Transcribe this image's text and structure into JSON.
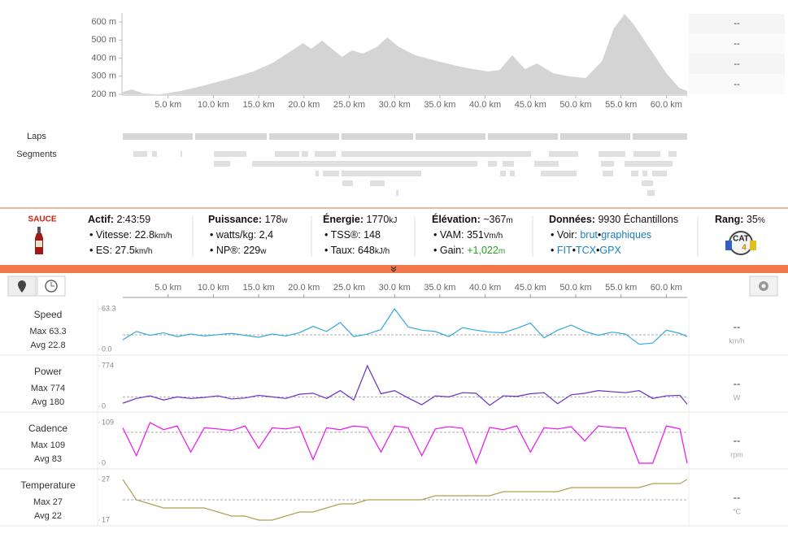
{
  "chart_data": [
    {
      "type": "area",
      "color": "#d4d4d4",
      "x": [
        0,
        1.0,
        2.3,
        4.1,
        6.4,
        9.0,
        11.7,
        14.4,
        16.6,
        18.4,
        19.9,
        20.8,
        22.0,
        23.3,
        24.2,
        25.3,
        26.5,
        28.0,
        29.2,
        30.5,
        32.3,
        35.0,
        37.7,
        40.3,
        41.6,
        43.0,
        44.4,
        45.7,
        47.5,
        49.3,
        51.1,
        52.9,
        54.2,
        55.4,
        56.4,
        58.2,
        60.0,
        61.4,
        62.3
      ],
      "values": [
        213,
        227,
        204,
        200,
        218,
        249,
        285,
        326,
        375,
        434,
        483,
        452,
        497,
        443,
        407,
        443,
        425,
        461,
        515,
        461,
        416,
        380,
        348,
        326,
        335,
        416,
        339,
        371,
        317,
        299,
        290,
        384,
        564,
        645,
        587,
        452,
        317,
        236,
        218
      ],
      "xlim": [
        0,
        62.3
      ],
      "ylim": [
        200,
        650
      ],
      "xticks": [
        {
          "value": 5,
          "label": "5.0 km"
        },
        {
          "value": 10,
          "label": "10.0 km"
        },
        {
          "value": 15,
          "label": "15.0 km"
        },
        {
          "value": 20,
          "label": "20.0 km"
        },
        {
          "value": 25,
          "label": "25.0 km"
        },
        {
          "value": 30,
          "label": "30.0 km"
        },
        {
          "value": 35,
          "label": "35.0 km"
        },
        {
          "value": 40,
          "label": "40.0 km"
        },
        {
          "value": 45,
          "label": "45.0 km"
        },
        {
          "value": 50,
          "label": "50.0 km"
        },
        {
          "value": 55,
          "label": "55.0 km"
        },
        {
          "value": 60,
          "label": "60.0 km"
        }
      ],
      "yticks": [
        {
          "value": 200,
          "label": "200 m"
        },
        {
          "value": 300,
          "label": "300 m"
        },
        {
          "value": 400,
          "label": "400 m"
        },
        {
          "value": 500,
          "label": "500 m"
        },
        {
          "value": 600,
          "label": "600 m"
        }
      ]
    },
    {
      "type": "line",
      "title": "Speed",
      "max_label": "Max 63.3",
      "avg_label": "Avg 22.8",
      "avg": 22.8,
      "readout": "--",
      "unit": "km/h",
      "color": "#35a8dc",
      "x": [
        0,
        1.5,
        3,
        4.5,
        6,
        7.5,
        9,
        10.5,
        12,
        13.5,
        15,
        16.5,
        18,
        19.5,
        21,
        22.5,
        24,
        25.5,
        27,
        28.5,
        30,
        31.5,
        33,
        34.5,
        36,
        37.5,
        39,
        40.5,
        42,
        43.5,
        45,
        46.5,
        48,
        49.5,
        51,
        52.5,
        54,
        55.5,
        57,
        58.5,
        60,
        61.5,
        62.3
      ],
      "values": [
        15,
        28,
        22,
        26,
        20,
        24,
        21,
        23,
        25,
        22,
        19,
        24,
        21,
        26,
        36,
        28,
        42,
        20,
        24,
        31,
        63.3,
        35,
        30,
        28,
        20,
        34,
        30,
        27,
        26,
        33,
        41,
        18,
        30,
        38,
        28,
        22,
        27,
        24,
        8,
        10,
        30,
        25,
        20
      ],
      "xlim": [
        0,
        62.3
      ],
      "ylim": [
        0,
        63.3
      ],
      "yticks": [
        {
          "value": 0,
          "label": "0.0"
        },
        63.3
      ]
    },
    {
      "type": "line",
      "title": "Power",
      "max_label": "Max 774",
      "avg_label": "Avg 180",
      "avg": 180,
      "readout": "--",
      "unit": "W",
      "color": "#6a2fc0",
      "x": [
        0,
        1.5,
        3,
        4.5,
        6,
        7.5,
        9,
        10.5,
        12,
        13.5,
        15,
        16.5,
        18,
        19.5,
        21,
        22.5,
        24,
        25.5,
        27,
        28.5,
        30,
        31.5,
        33,
        34.5,
        36,
        37.5,
        39,
        40.5,
        42,
        43.5,
        45,
        46.5,
        48,
        49.5,
        51,
        52.5,
        54,
        55.5,
        57,
        58.5,
        60,
        61.5,
        62.3
      ],
      "values": [
        60,
        150,
        200,
        120,
        180,
        150,
        170,
        200,
        140,
        160,
        210,
        180,
        150,
        230,
        250,
        150,
        300,
        120,
        774,
        240,
        300,
        160,
        30,
        200,
        180,
        260,
        250,
        20,
        200,
        190,
        240,
        260,
        50,
        220,
        250,
        300,
        280,
        260,
        300,
        150,
        200,
        210,
        40
      ],
      "xlim": [
        0,
        62.3
      ],
      "ylim": [
        0,
        774
      ],
      "yticks": [
        0,
        774
      ]
    },
    {
      "type": "line",
      "title": "Cadence",
      "max_label": "Max 109",
      "avg_label": "Avg 83",
      "avg": 83,
      "readout": "--",
      "unit": "rpm",
      "color": "#ee10ee",
      "x": [
        0,
        1.5,
        3,
        4.5,
        6,
        7.5,
        9,
        10.5,
        12,
        13.5,
        15,
        16.5,
        18,
        19.5,
        21,
        22.5,
        24,
        25.5,
        27,
        28.5,
        30,
        31.5,
        33,
        34.5,
        36,
        37.5,
        39,
        40.5,
        42,
        43.5,
        45,
        46.5,
        48,
        49.5,
        51,
        52.5,
        54,
        55.5,
        57,
        58.5,
        60,
        61.5,
        62.3
      ],
      "values": [
        95,
        20,
        109,
        90,
        100,
        30,
        95,
        92,
        88,
        100,
        40,
        95,
        92,
        98,
        10,
        95,
        90,
        100,
        96,
        30,
        100,
        95,
        20,
        92,
        98,
        94,
        0,
        96,
        90,
        100,
        30,
        95,
        92,
        98,
        60,
        100,
        96,
        94,
        0,
        0,
        100,
        92,
        0
      ],
      "xlim": [
        0,
        62.3
      ],
      "ylim": [
        0,
        109
      ],
      "yticks": [
        0,
        109
      ]
    },
    {
      "type": "line",
      "title": "Temperature",
      "max_label": "Max 27",
      "avg_label": "Avg 22",
      "avg": 22,
      "readout": "--",
      "unit": "°C",
      "color": "#b0a050",
      "x": [
        0,
        1.5,
        3,
        4.5,
        6,
        7.5,
        9,
        10.5,
        12,
        13.5,
        15,
        16.5,
        18,
        19.5,
        21,
        22.5,
        24,
        25.5,
        27,
        28.5,
        30,
        31.5,
        33,
        34.5,
        36,
        37.5,
        39,
        40.5,
        42,
        43.5,
        45,
        46.5,
        48,
        49.5,
        51,
        52.5,
        54,
        55.5,
        57,
        58.5,
        60,
        61.5,
        62.3
      ],
      "values": [
        27,
        22,
        21,
        20,
        20,
        20,
        20,
        19,
        18,
        18,
        17,
        17,
        18,
        19,
        19,
        20,
        21,
        21,
        22,
        22,
        22,
        22,
        22,
        23,
        23,
        23,
        23,
        23,
        24,
        24,
        24,
        24,
        24,
        25,
        25,
        25,
        25,
        25,
        25,
        26,
        26,
        26,
        27
      ],
      "xlim": [
        0,
        62.3
      ],
      "ylim": [
        17,
        27
      ],
      "yticks": [
        17,
        27
      ]
    }
  ],
  "elevation_sidebar": [
    "--",
    "--",
    "--",
    "--"
  ],
  "tracks": {
    "laps": "Laps",
    "segments": "Segments"
  },
  "stream_axis": {
    "xlim": [
      0,
      62.3
    ],
    "xticks": [
      {
        "value": 5,
        "label": "5.0 km"
      },
      {
        "value": 10,
        "label": "10.0 km"
      },
      {
        "value": 15,
        "label": "15.0 km"
      },
      {
        "value": 20,
        "label": "20.0 km"
      },
      {
        "value": 25,
        "label": "25.0 km"
      },
      {
        "value": 30,
        "label": "30.0 km"
      },
      {
        "value": 35,
        "label": "35.0 km"
      },
      {
        "value": 40,
        "label": "40.0 km"
      },
      {
        "value": 45,
        "label": "45.0 km"
      },
      {
        "value": 50,
        "label": "50.0 km"
      },
      {
        "value": 55,
        "label": "55.0 km"
      },
      {
        "value": 60,
        "label": "60.0 km"
      }
    ]
  },
  "stats": {
    "brand": "SAUCE",
    "active": {
      "label": "Actif:",
      "value": "2:43:59"
    },
    "speed": {
      "label": "• Vitesse:",
      "value": "22.8",
      "unit": "km/h"
    },
    "es": {
      "label": "• ES:",
      "value": "27.5",
      "unit": "km/h"
    },
    "power": {
      "label": "Puissance:",
      "value": "178",
      "unit": "w"
    },
    "wkg": {
      "label": "• watts/kg:",
      "value": "2,4"
    },
    "np": {
      "label": "• NP®:",
      "value": "229",
      "unit": "w"
    },
    "energy": {
      "label": "Énergie:",
      "value": "1770",
      "unit": "kJ"
    },
    "tss": {
      "label": "• TSS®:",
      "value": "148"
    },
    "rate": {
      "label": "• Taux:",
      "value": "648",
      "unit": "kJ/h"
    },
    "elevation": {
      "label": "Élévation:",
      "value": "~367",
      "unit": "m"
    },
    "vam": {
      "label": "• VAM:",
      "value": "351",
      "unit": "Vm/h"
    },
    "gain": {
      "label": "• Gain:",
      "value": "+1,022",
      "unit": "m"
    },
    "data": {
      "label": "Données:",
      "value": "9930 Échantillons"
    },
    "view": {
      "label": "• Voir:",
      "raw": "brut",
      "sep": "•",
      "graphs": "graphiques"
    },
    "formats": [
      "•",
      "FIT",
      "•",
      "TCX",
      "•",
      "GPX"
    ],
    "rank": {
      "label": "Rang:",
      "value": "35",
      "unit": "%",
      "badge": "CAT",
      "level": "4"
    }
  }
}
